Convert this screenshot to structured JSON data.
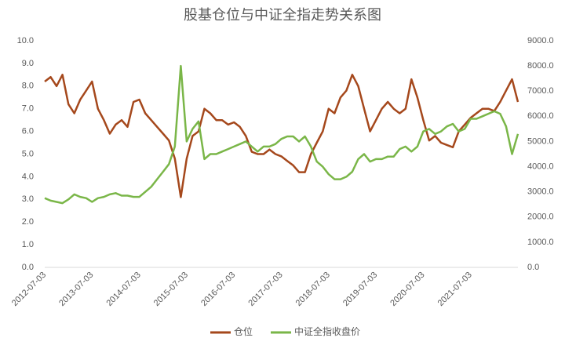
{
  "chart_data": {
    "type": "line",
    "title": "股基仓位与中证全指走势关系图",
    "categories": [
      "2012-07-03",
      null,
      null,
      null,
      null,
      null,
      null,
      null,
      "2013-07-03",
      null,
      null,
      null,
      null,
      null,
      null,
      null,
      "2014-07-03",
      null,
      null,
      null,
      null,
      null,
      null,
      null,
      "2015-07-03",
      null,
      null,
      null,
      null,
      null,
      null,
      null,
      "2016-07-03",
      null,
      null,
      null,
      null,
      null,
      null,
      null,
      "2017-07-03",
      null,
      null,
      null,
      null,
      null,
      null,
      null,
      "2018-07-03",
      null,
      null,
      null,
      null,
      null,
      null,
      null,
      "2019-07-03",
      null,
      null,
      null,
      null,
      null,
      null,
      null,
      "2020-07-03",
      null,
      null,
      null,
      null,
      null,
      null,
      null,
      "2021-07-03",
      null,
      null,
      null,
      null,
      null,
      null,
      null,
      null
    ],
    "series": [
      {
        "name": "仓位",
        "color": "#a5481c",
        "values": [
          8.2,
          8.4,
          8.0,
          8.5,
          7.2,
          6.8,
          7.4,
          7.8,
          8.2,
          7.0,
          6.5,
          5.9,
          6.3,
          6.5,
          6.2,
          7.3,
          7.4,
          6.8,
          6.5,
          6.2,
          5.9,
          5.6,
          4.8,
          3.1,
          4.8,
          5.8,
          6.0,
          7.0,
          6.8,
          6.5,
          6.5,
          6.3,
          6.4,
          6.2,
          5.8,
          5.1,
          5.0,
          5.0,
          5.2,
          5.0,
          4.9,
          4.7,
          4.5,
          4.2,
          4.2,
          5.0,
          5.5,
          6.0,
          7.0,
          6.8,
          7.5,
          7.8,
          8.5,
          8.0,
          7.0,
          6.0,
          6.5,
          7.0,
          7.3,
          7.0,
          6.8,
          7.0,
          8.3,
          7.5,
          6.5,
          5.6,
          5.8,
          5.5,
          5.4,
          5.3,
          6.0,
          6.3,
          6.6,
          6.8,
          7.0,
          7.0,
          6.9,
          7.3,
          7.8,
          8.3,
          7.3
        ]
      },
      {
        "name": "中证全指收盘价",
        "color": "#7ab648",
        "axis": "y2",
        "values": [
          2750,
          2650,
          2600,
          2550,
          2700,
          2900,
          2800,
          2750,
          2600,
          2750,
          2800,
          2900,
          2950,
          2850,
          2850,
          2800,
          2800,
          3000,
          3200,
          3500,
          3800,
          4100,
          4800,
          8000,
          5000,
          5500,
          5800,
          4300,
          4500,
          4500,
          4600,
          4700,
          4800,
          4900,
          5000,
          4800,
          4600,
          4800,
          4800,
          4900,
          5100,
          5200,
          5200,
          5000,
          5200,
          4800,
          4200,
          4000,
          3700,
          3500,
          3500,
          3600,
          3800,
          4300,
          4500,
          4200,
          4300,
          4300,
          4400,
          4400,
          4700,
          4800,
          4600,
          4800,
          5400,
          5500,
          5300,
          5400,
          5600,
          5700,
          5400,
          5500,
          5900,
          5900,
          6000,
          6100,
          6200,
          6100,
          5600,
          4500,
          5300
        ]
      }
    ],
    "ylim": [
      0,
      10
    ],
    "yticks": [
      {
        "value": 0,
        "label": "0.0"
      },
      {
        "value": 1,
        "label": "1.0"
      },
      {
        "value": 2,
        "label": "2.0"
      },
      {
        "value": 3,
        "label": "3.0"
      },
      {
        "value": 4,
        "label": "4.0"
      },
      {
        "value": 5,
        "label": "5.0"
      },
      {
        "value": 6,
        "label": "6.0"
      },
      {
        "value": 7,
        "label": "7.0"
      },
      {
        "value": 8,
        "label": "8.0"
      },
      {
        "value": 9,
        "label": "9.0"
      },
      {
        "value": 10,
        "label": "10.0"
      }
    ],
    "y2lim": [
      0,
      9000
    ],
    "y2ticks": [
      {
        "value": 0,
        "label": "0.0"
      },
      {
        "value": 1000,
        "label": "1000.0"
      },
      {
        "value": 2000,
        "label": "2000.0"
      },
      {
        "value": 3000,
        "label": "3000.0"
      },
      {
        "value": 4000,
        "label": "4000.0"
      },
      {
        "value": 5000,
        "label": "5000.0"
      },
      {
        "value": 6000,
        "label": "6000.0"
      },
      {
        "value": 7000,
        "label": "7000.0"
      },
      {
        "value": 8000,
        "label": "8000.0"
      },
      {
        "value": 9000,
        "label": "9000.0"
      }
    ],
    "grid": false,
    "legend": "bottom"
  }
}
